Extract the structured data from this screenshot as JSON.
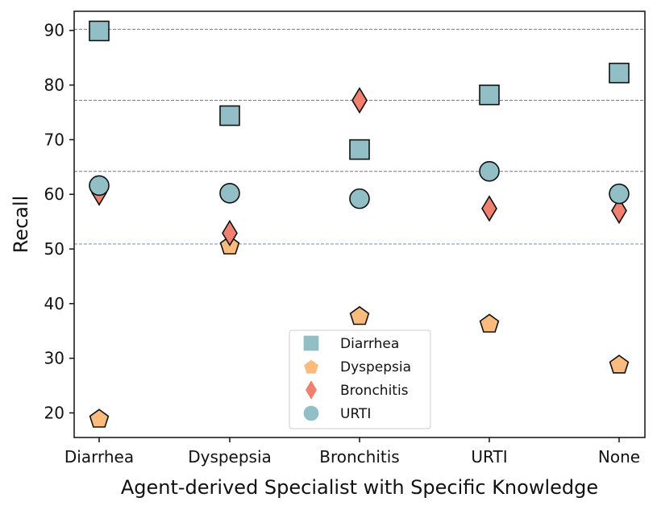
{
  "chart_data": {
    "type": "scatter",
    "xlabel": "Agent-derived Specialist with Specific Knowledge",
    "ylabel": "Recall",
    "categories": [
      "Diarrhea",
      "Dyspepsia",
      "Bronchitis",
      "URTI",
      "None"
    ],
    "ylim": [
      15.5,
      93.5
    ],
    "yticks": [
      20,
      30,
      40,
      50,
      60,
      70,
      80,
      90
    ],
    "grid": "horizontal dashed reference lines",
    "reference_lines": [
      {
        "y": 90.2,
        "color": "#7a7a7a"
      },
      {
        "y": 77.2,
        "color": "#7a7a7a"
      },
      {
        "y": 64.2,
        "color": "#7a7a7a"
      },
      {
        "y": 50.9,
        "color": "#6a9aa8"
      }
    ],
    "series": [
      {
        "name": "Diarrhea",
        "marker": "square",
        "color": "#92bfc6",
        "values": [
          89.9,
          74.4,
          68.2,
          78.2,
          82.2
        ]
      },
      {
        "name": "Dyspepsia",
        "marker": "pentagon",
        "color": "#fbbb7c",
        "values": [
          19.0,
          50.7,
          37.8,
          36.4,
          28.9
        ]
      },
      {
        "name": "Bronchitis",
        "marker": "diamond",
        "color": "#f08070",
        "values": [
          60.3,
          52.9,
          77.2,
          57.4,
          57.0
        ]
      },
      {
        "name": "URTI",
        "marker": "circle",
        "color": "#92bfc6",
        "values": [
          61.6,
          60.2,
          59.2,
          64.2,
          60.1
        ]
      }
    ],
    "legend": "lower-center"
  }
}
